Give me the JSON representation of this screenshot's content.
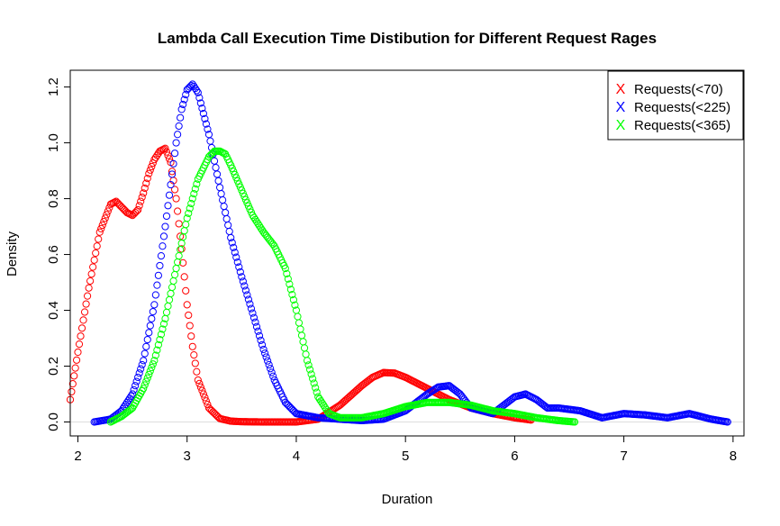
{
  "chart_data": {
    "type": "scatter",
    "title": "Lambda Call Execution Time Distibution for Different Request Rages",
    "xlabel": "Duration",
    "ylabel": "Density",
    "xlim": [
      1.93,
      8.1
    ],
    "ylim": [
      -0.05,
      1.26
    ],
    "xticks": [
      2,
      3,
      4,
      5,
      6,
      7,
      8
    ],
    "yticks": [
      0.0,
      0.2,
      0.4,
      0.6,
      0.8,
      1.0,
      1.2
    ],
    "ytick_labels": [
      "0.0",
      "0.2",
      "0.4",
      "0.6",
      "0.8",
      "1.0",
      "1.2"
    ],
    "grid": false,
    "legend": {
      "position": "top-right",
      "marker": "X",
      "entries": [
        {
          "label": "Requests(<70)",
          "color": "#ff0000"
        },
        {
          "label": "Requests(<225)",
          "color": "#0000ff"
        },
        {
          "label": "Requests(<365)",
          "color": "#00ff00"
        }
      ]
    },
    "series": [
      {
        "name": "Requests(<70)",
        "color": "#ff0000",
        "x": [
          1.93,
          2.0,
          2.1,
          2.2,
          2.3,
          2.35,
          2.4,
          2.45,
          2.5,
          2.55,
          2.6,
          2.65,
          2.7,
          2.75,
          2.8,
          2.85,
          2.9,
          2.95,
          3.0,
          3.05,
          3.1,
          3.2,
          3.3,
          3.4,
          3.5,
          3.7,
          4.0,
          4.2,
          4.4,
          4.6,
          4.7,
          4.8,
          4.9,
          5.0,
          5.2,
          5.4,
          5.6,
          5.8,
          6.0,
          6.15
        ],
        "y": [
          0.08,
          0.25,
          0.48,
          0.68,
          0.78,
          0.79,
          0.77,
          0.75,
          0.74,
          0.76,
          0.82,
          0.89,
          0.94,
          0.97,
          0.98,
          0.93,
          0.8,
          0.62,
          0.42,
          0.27,
          0.15,
          0.05,
          0.012,
          0.003,
          0.001,
          0.0,
          0.0,
          0.01,
          0.06,
          0.13,
          0.16,
          0.177,
          0.175,
          0.16,
          0.12,
          0.08,
          0.05,
          0.03,
          0.015,
          0.007
        ]
      },
      {
        "name": "Requests(<225)",
        "color": "#0000ff",
        "x": [
          2.15,
          2.3,
          2.4,
          2.5,
          2.6,
          2.7,
          2.8,
          2.9,
          2.95,
          3.0,
          3.05,
          3.1,
          3.2,
          3.3,
          3.4,
          3.5,
          3.6,
          3.7,
          3.8,
          3.9,
          4.0,
          4.2,
          4.4,
          4.6,
          4.8,
          5.0,
          5.2,
          5.3,
          5.4,
          5.5,
          5.6,
          5.8,
          5.9,
          6.0,
          6.1,
          6.2,
          6.3,
          6.4,
          6.6,
          6.8,
          7.0,
          7.2,
          7.4,
          7.6,
          7.8,
          7.95
        ],
        "y": [
          0.0,
          0.01,
          0.04,
          0.1,
          0.22,
          0.42,
          0.7,
          1.0,
          1.12,
          1.19,
          1.21,
          1.18,
          1.03,
          0.84,
          0.66,
          0.52,
          0.39,
          0.26,
          0.15,
          0.07,
          0.03,
          0.015,
          0.01,
          0.005,
          0.01,
          0.04,
          0.1,
          0.125,
          0.13,
          0.1,
          0.05,
          0.03,
          0.06,
          0.09,
          0.1,
          0.08,
          0.05,
          0.05,
          0.04,
          0.015,
          0.03,
          0.025,
          0.015,
          0.03,
          0.01,
          0.0
        ]
      },
      {
        "name": "Requests(<365)",
        "color": "#00ff00",
        "x": [
          2.3,
          2.4,
          2.5,
          2.6,
          2.7,
          2.8,
          2.9,
          3.0,
          3.1,
          3.2,
          3.25,
          3.3,
          3.35,
          3.4,
          3.5,
          3.6,
          3.7,
          3.8,
          3.9,
          4.0,
          4.1,
          4.2,
          4.3,
          4.4,
          4.6,
          4.8,
          5.0,
          5.2,
          5.4,
          5.6,
          5.8,
          6.0,
          6.2,
          6.4,
          6.55
        ],
        "y": [
          0.0,
          0.02,
          0.05,
          0.12,
          0.22,
          0.37,
          0.55,
          0.73,
          0.87,
          0.95,
          0.97,
          0.97,
          0.96,
          0.92,
          0.83,
          0.74,
          0.68,
          0.63,
          0.55,
          0.4,
          0.22,
          0.09,
          0.03,
          0.015,
          0.015,
          0.03,
          0.055,
          0.07,
          0.07,
          0.06,
          0.04,
          0.03,
          0.015,
          0.005,
          0.0
        ]
      }
    ]
  }
}
